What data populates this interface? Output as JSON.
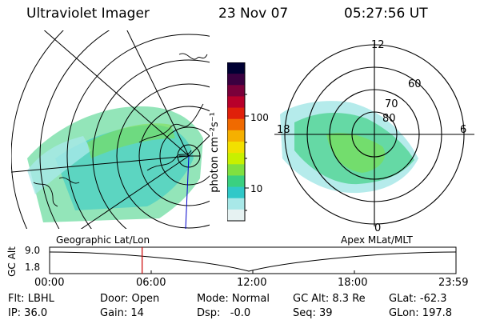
{
  "header": {
    "instrument": "Ultraviolet Imager",
    "date": "23 Nov 07",
    "time": "05:27:56 UT"
  },
  "colorbar": {
    "ticks": [
      "100",
      "10"
    ],
    "unit_label": "photon cm⁻²s⁻¹",
    "colors": [
      "#000033",
      "#3a0040",
      "#7a003a",
      "#b8002a",
      "#e0200a",
      "#f06a00",
      "#f5b000",
      "#f2e000",
      "#c8f000",
      "#80e040",
      "#3ad080",
      "#30c8c8",
      "#a8e8e8",
      "#e6f2f2"
    ]
  },
  "left_map": {
    "label": "Geographic Lat/Lon"
  },
  "right_map": {
    "label": "Apex MLat/MLT",
    "lat_labels": [
      "80",
      "70",
      "60"
    ],
    "mlt_labels": [
      "12",
      "18",
      "6",
      "0"
    ]
  },
  "timeline": {
    "y_axis_label": "GC Alt",
    "y_ticks": [
      "9.0",
      "1.8"
    ],
    "x_ticks": [
      "00:00",
      "06:00",
      "12:00",
      "18:00",
      "23:59"
    ],
    "marker_time": "05:27:56"
  },
  "footer": {
    "row1": [
      "Flt: LBHL",
      "Door: Open",
      "Mode: Normal",
      "GC Alt: 8.3 Re",
      "GLat: -62.3"
    ],
    "row2": [
      "IP: 36.0",
      "Gain: 14",
      "Dsp:   -0.0",
      "Seq: 39",
      "GLon: 197.8"
    ]
  }
}
